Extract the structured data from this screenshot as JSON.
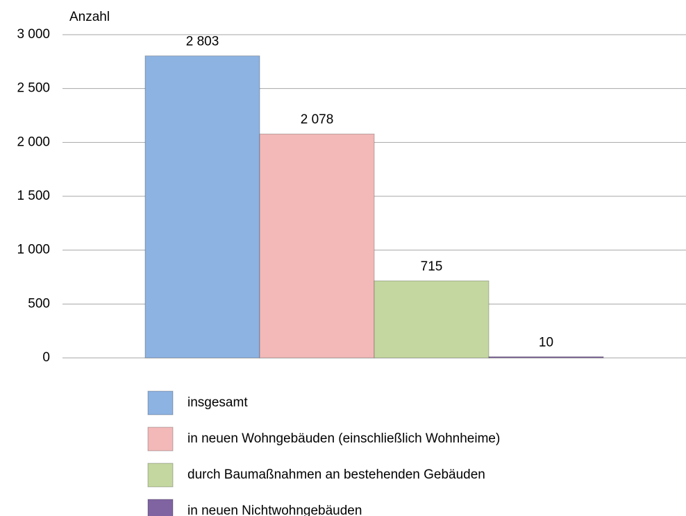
{
  "chart_data": {
    "type": "bar",
    "y_label": "Anzahl",
    "categories": [
      null
    ],
    "series": [
      {
        "name": "insgesamt",
        "color": "#8db3e2",
        "values": [
          2803
        ],
        "value_labels": [
          "2 803"
        ]
      },
      {
        "name": "in neuen Wohngebäuden (einschließlich Wohnheime)",
        "color": "#f2b9b8",
        "values": [
          2078
        ],
        "value_labels": [
          "2 078"
        ]
      },
      {
        "name": "durch Baumaßnahmen an bestehenden Gebäuden",
        "color": "#c4d7a0",
        "values": [
          715
        ],
        "value_labels": [
          "715"
        ]
      },
      {
        "name": "in neuen Nichtwohngebäuden",
        "color": "#8064a2",
        "values": [
          10
        ],
        "value_labels": [
          "10"
        ]
      }
    ],
    "ylim": [
      0,
      3000
    ],
    "yticks": [
      {
        "value": 0,
        "label": "0"
      },
      {
        "value": 500,
        "label": "500"
      },
      {
        "value": 1000,
        "label": "1 000"
      },
      {
        "value": 1500,
        "label": "1 500"
      },
      {
        "value": 2000,
        "label": "2 000"
      },
      {
        "value": 2500,
        "label": "2 500"
      },
      {
        "value": 3000,
        "label": "3 000"
      }
    ],
    "grid": true
  }
}
